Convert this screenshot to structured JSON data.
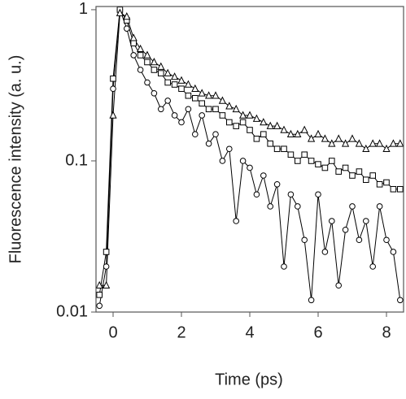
{
  "chart_data": {
    "type": "line",
    "xlabel": "Time (ps)",
    "ylabel": "Fluorescence intensity (a. u.)",
    "x": [
      -0.4,
      -0.2,
      0,
      0.2,
      0.4,
      0.6,
      0.8,
      1.0,
      1.2,
      1.4,
      1.6,
      1.8,
      2.0,
      2.2,
      2.4,
      2.6,
      2.8,
      3.0,
      3.2,
      3.4,
      3.6,
      3.8,
      4.0,
      4.2,
      4.4,
      4.6,
      4.8,
      5.0,
      5.2,
      5.4,
      5.6,
      5.8,
      6.0,
      6.2,
      6.4,
      6.6,
      6.8,
      7.0,
      7.2,
      7.4,
      7.6,
      7.8,
      8.0,
      8.2,
      8.4
    ],
    "series": [
      {
        "marker": "circle",
        "color": "#000000",
        "values": [
          0.011,
          0.02,
          0.3,
          1,
          0.75,
          0.5,
          0.4,
          0.33,
          0.28,
          0.22,
          0.25,
          0.2,
          0.18,
          0.22,
          0.15,
          0.2,
          0.13,
          0.15,
          0.1,
          0.12,
          0.04,
          0.1,
          0.09,
          0.06,
          0.08,
          0.05,
          0.07,
          0.02,
          0.06,
          0.05,
          0.03,
          0.012,
          0.06,
          0.025,
          0.04,
          0.015,
          0.035,
          0.05,
          0.03,
          0.04,
          0.02,
          0.05,
          0.03,
          0.025,
          0.012
        ]
      },
      {
        "marker": "square",
        "color": "#000000",
        "values": [
          0.013,
          0.025,
          0.35,
          1,
          0.85,
          0.6,
          0.5,
          0.45,
          0.4,
          0.38,
          0.33,
          0.32,
          0.3,
          0.27,
          0.26,
          0.24,
          0.22,
          0.22,
          0.2,
          0.18,
          0.17,
          0.18,
          0.16,
          0.14,
          0.15,
          0.13,
          0.12,
          0.12,
          0.11,
          0.1,
          0.11,
          0.1,
          0.095,
          0.09,
          0.1,
          0.085,
          0.09,
          0.08,
          0.085,
          0.075,
          0.08,
          0.07,
          0.072,
          0.065,
          0.065
        ]
      },
      {
        "marker": "triangle",
        "color": "#000000",
        "values": [
          0.015,
          0.015,
          0.2,
          0.95,
          0.9,
          0.65,
          0.55,
          0.5,
          0.45,
          0.42,
          0.38,
          0.36,
          0.34,
          0.32,
          0.3,
          0.28,
          0.27,
          0.27,
          0.25,
          0.23,
          0.22,
          0.2,
          0.2,
          0.19,
          0.18,
          0.17,
          0.17,
          0.16,
          0.15,
          0.15,
          0.16,
          0.14,
          0.15,
          0.14,
          0.13,
          0.14,
          0.13,
          0.14,
          0.13,
          0.12,
          0.13,
          0.13,
          0.12,
          0.13,
          0.13
        ]
      }
    ],
    "xlim": [
      -0.5,
      8.5
    ],
    "xticks": [
      0,
      2,
      4,
      6,
      8
    ],
    "ylim": [
      0.01,
      1.05
    ],
    "yticks": [
      0.01,
      0.1,
      1
    ],
    "ylog": true
  }
}
